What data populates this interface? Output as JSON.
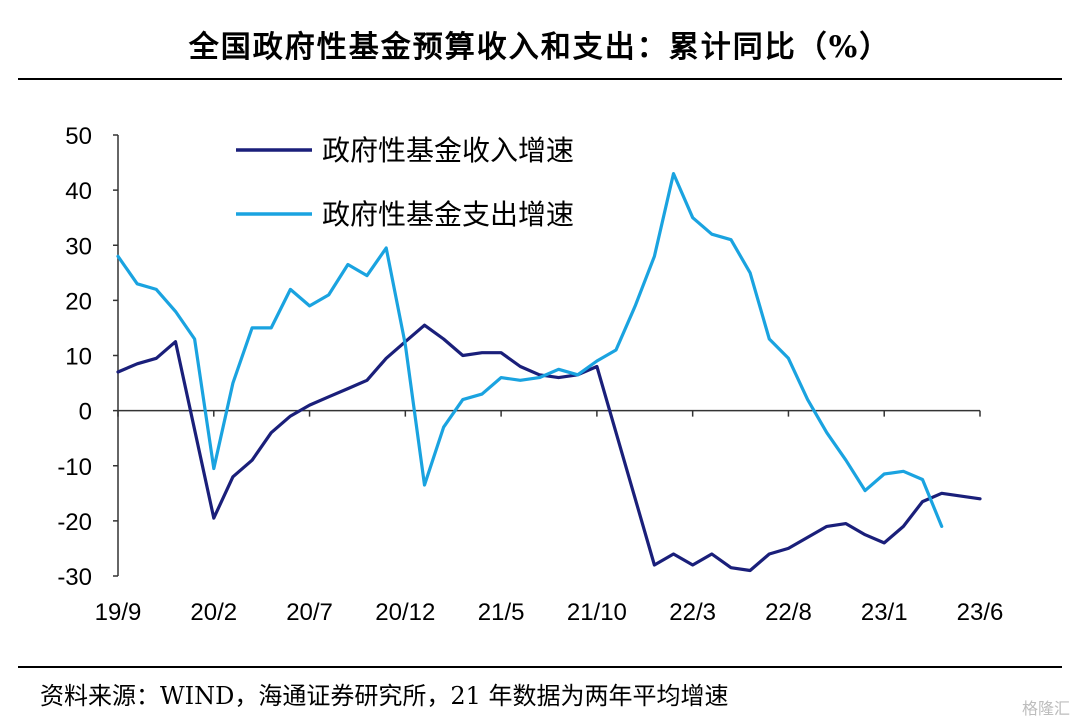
{
  "title": "全国政府性基金预算收入和支出：累计同比（%）",
  "source": "资料来源：WIND，海通证券研究所，21 年数据为两年平均增速",
  "watermark": "格隆汇",
  "colors": {
    "income": "#1a1f7a",
    "expense": "#1aa3e0",
    "axis": "#333333"
  },
  "chart_data": {
    "type": "line",
    "title": "全国政府性基金预算收入和支出：累计同比（%）",
    "ylim": [
      -30,
      50
    ],
    "yticks": [
      50,
      40,
      30,
      20,
      10,
      0,
      -10,
      -20,
      -30
    ],
    "xticks": [
      "19/9",
      "20/2",
      "20/7",
      "20/12",
      "21/5",
      "21/10",
      "22/3",
      "22/8",
      "23/1",
      "23/6"
    ],
    "x": [
      "19/9",
      "19/10",
      "19/11",
      "19/12",
      "20/1",
      "20/2",
      "20/3",
      "20/4",
      "20/5",
      "20/6",
      "20/7",
      "20/8",
      "20/9",
      "20/10",
      "20/11",
      "20/12",
      "21/1",
      "21/2",
      "21/3",
      "21/4",
      "21/5",
      "21/6",
      "21/7",
      "21/8",
      "21/9",
      "21/10",
      "21/11",
      "21/12",
      "22/1",
      "22/2",
      "22/3",
      "22/4",
      "22/5",
      "22/6",
      "22/7",
      "22/8",
      "22/9",
      "22/10",
      "22/11",
      "22/12",
      "23/1",
      "23/2",
      "23/3",
      "23/4",
      "23/5",
      "23/6"
    ],
    "grid": false,
    "legend": "top-left",
    "series": [
      {
        "name": "政府性基金收入增速",
        "color_key": "income",
        "values": [
          7,
          8.5,
          9.5,
          12.5,
          null,
          -19.5,
          -12,
          -9,
          -4,
          -1,
          1,
          2.5,
          4,
          5.5,
          9.5,
          12.5,
          15.5,
          13,
          10,
          10.5,
          10.5,
          8,
          6.5,
          6,
          6.5,
          8,
          null,
          null,
          -28,
          -26,
          -28,
          -26,
          -28.5,
          -29,
          -26,
          -25,
          -23,
          -21,
          -20.5,
          -22.5,
          -24,
          -21,
          -16.5,
          -15,
          -15.5,
          -16
        ]
      },
      {
        "name": "政府性基金支出增速",
        "color_key": "expense",
        "values": [
          28,
          23,
          22,
          18,
          13,
          -10.5,
          5,
          15,
          15,
          22,
          19,
          21,
          26.5,
          24.5,
          29.5,
          12,
          -13.5,
          -3,
          2,
          3,
          6,
          5.5,
          6,
          7.5,
          6.5,
          9,
          11,
          19,
          28,
          43,
          35,
          32,
          31,
          25,
          13,
          9.5,
          2,
          -4,
          -9,
          -14.5,
          -11.5,
          -11,
          -12.5,
          -21,
          null,
          null
        ]
      }
    ]
  }
}
